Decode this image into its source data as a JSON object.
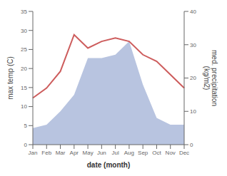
{
  "chart_data": {
    "type": "combo",
    "xlabel": "date (month)",
    "ylabel": "max temp (C)",
    "y2label": "med. precipitation\n(kg/m2)",
    "categories": [
      "Jan",
      "Feb",
      "Mar",
      "Apr",
      "May",
      "Jun",
      "Jul",
      "Aug",
      "Sep",
      "Oct",
      "Nov",
      "Dec"
    ],
    "series": [
      {
        "type": "area",
        "color": "#b8c4e0",
        "values": [
          4.375,
          5.25,
          8.75,
          13.125,
          22.75,
          22.75,
          23.625,
          27.125,
          15.75,
          7,
          5.25,
          5.25
        ]
      },
      {
        "type": "line",
        "color": "#cd5c5c",
        "axis": "y2",
        "values": [
          14,
          17,
          22,
          33,
          29,
          31,
          32,
          31,
          27,
          25,
          21,
          17
        ]
      }
    ],
    "ylim": [
      0,
      35
    ],
    "yticks": [
      0,
      5,
      10,
      15,
      20,
      25,
      30,
      35
    ],
    "y2lim": [
      0,
      40
    ],
    "y2ticks": [
      0,
      10,
      20,
      30,
      40
    ],
    "grid": false
  }
}
